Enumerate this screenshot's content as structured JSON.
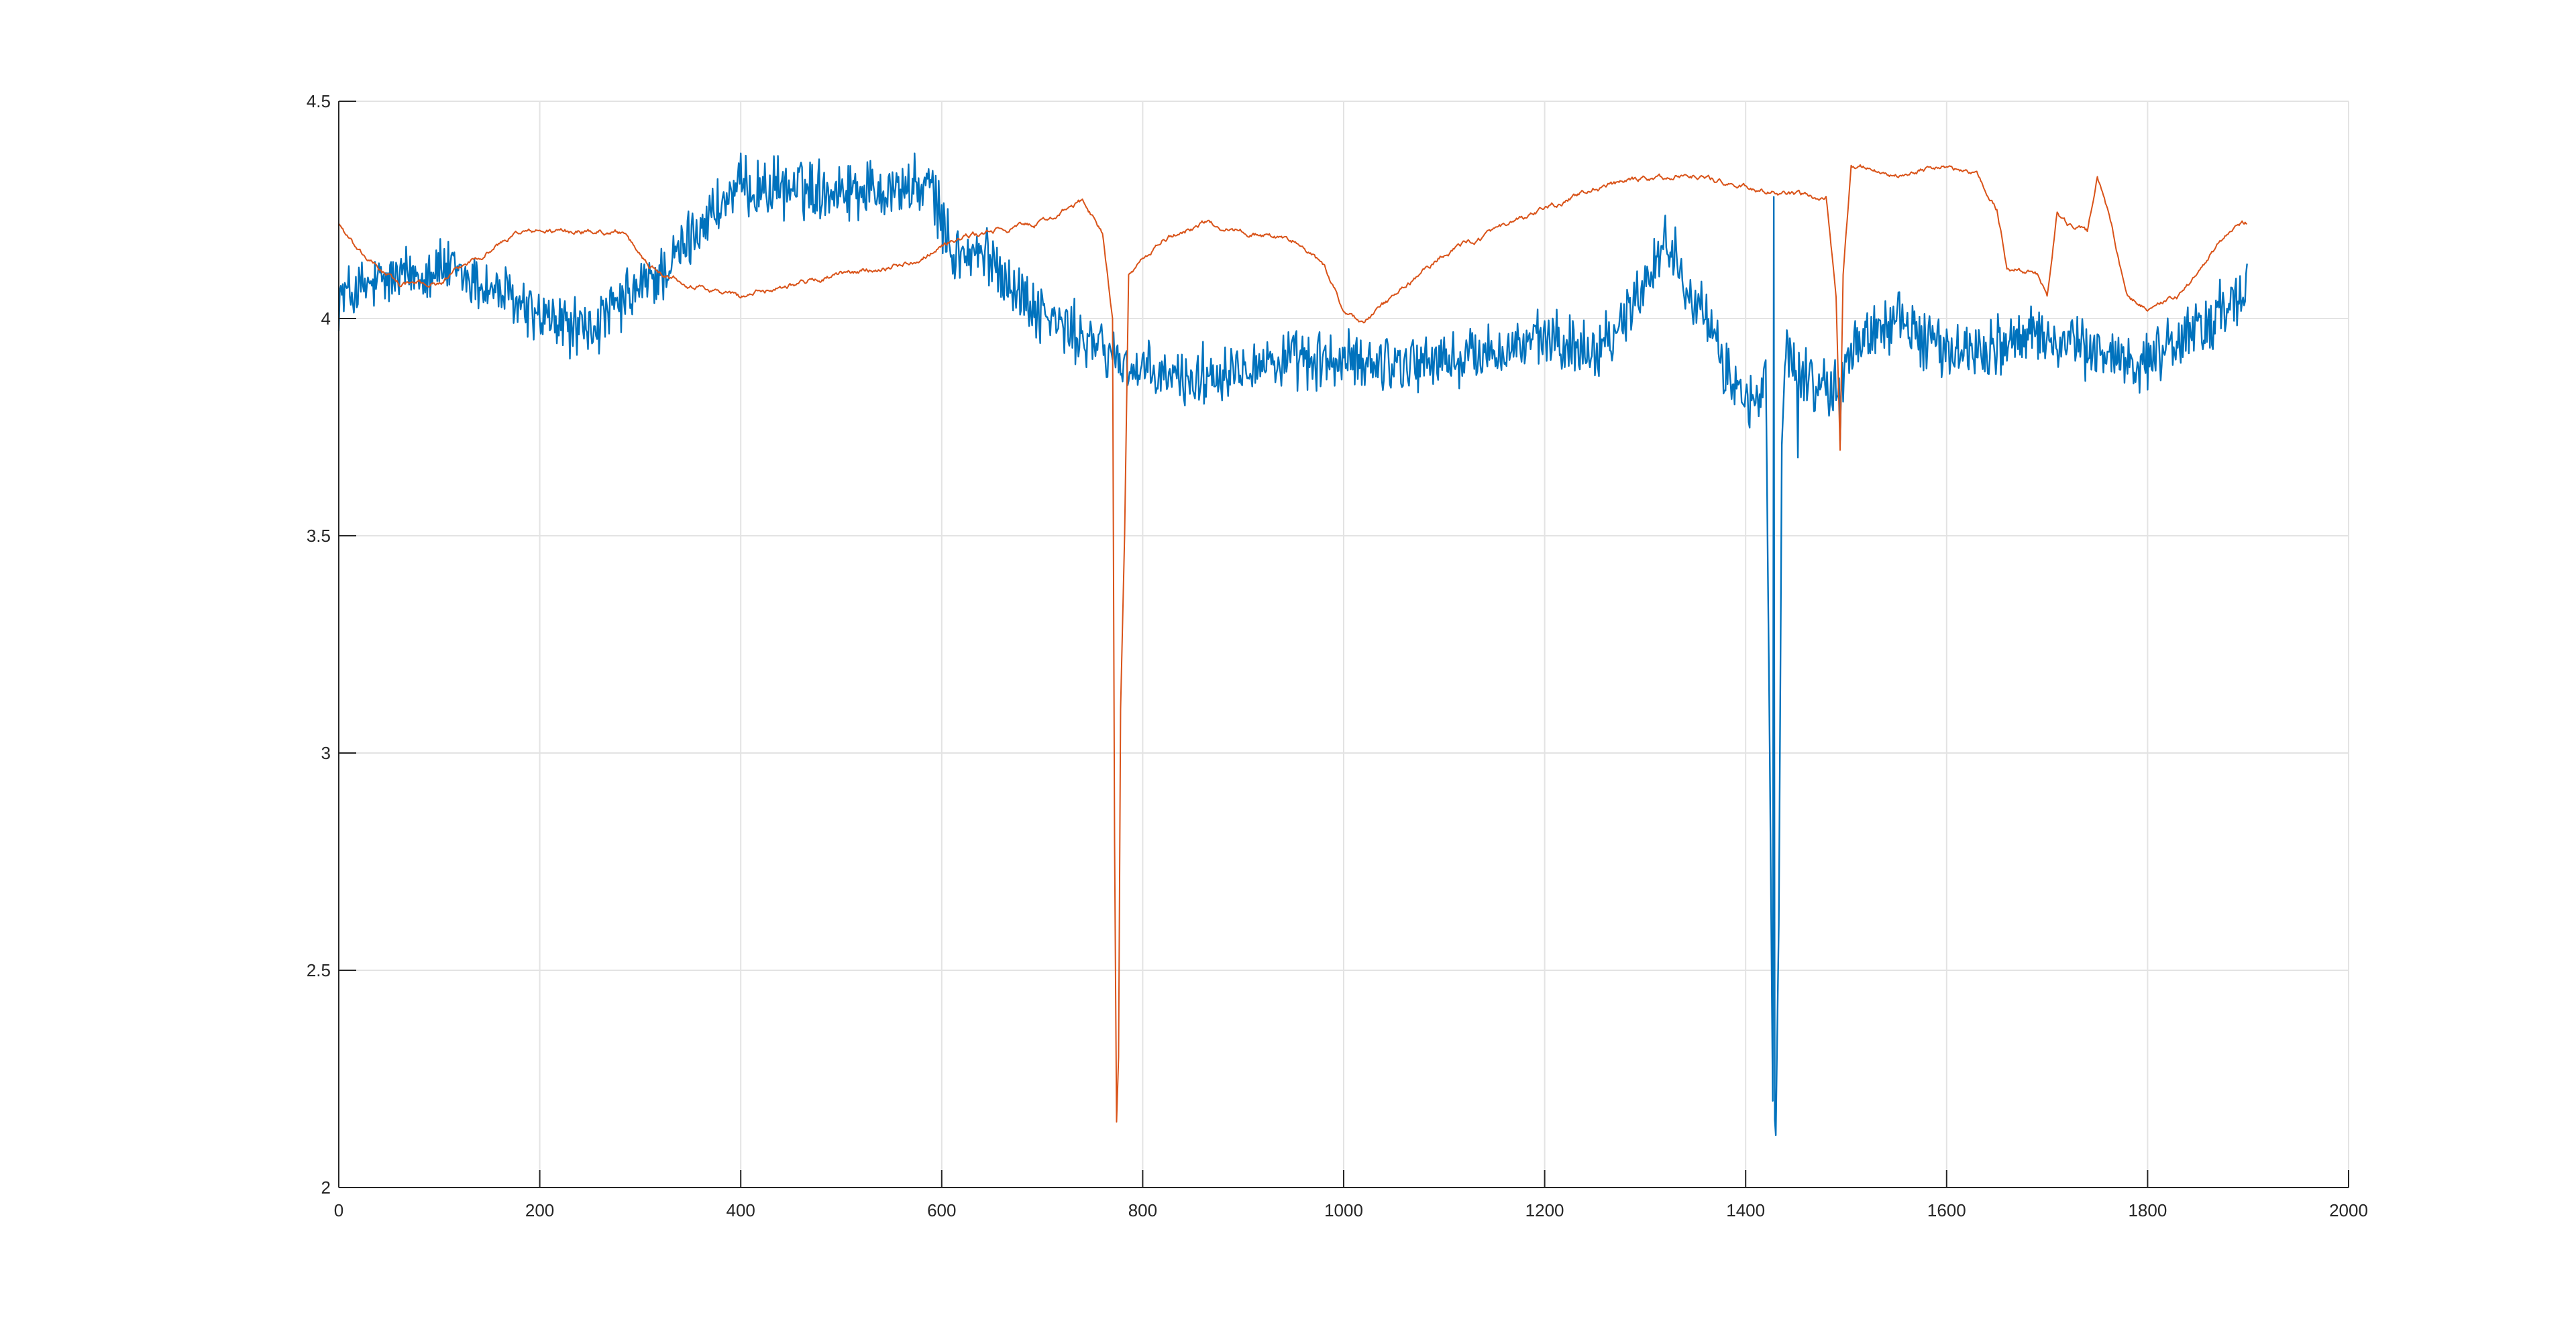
{
  "chart_data": {
    "type": "line",
    "title": "",
    "xlabel": "",
    "ylabel": "",
    "xlim": [
      0,
      2000
    ],
    "ylim": [
      2,
      4.5
    ],
    "x_ticks": [
      0,
      200,
      400,
      600,
      800,
      1000,
      1200,
      1400,
      1600,
      1800,
      2000
    ],
    "y_ticks": [
      2,
      2.5,
      3,
      3.5,
      4,
      4.5
    ],
    "x_tick_labels": [
      "0",
      "200",
      "400",
      "600",
      "800",
      "1000",
      "1200",
      "1400",
      "1600",
      "1800",
      "2000"
    ],
    "y_tick_labels": [
      "2",
      "2.5",
      "3",
      "3.5",
      "4",
      "4.5"
    ],
    "grid": true,
    "legend": "none",
    "samples": 1900,
    "series": [
      {
        "color": "#0072BD",
        "noise": 0.055,
        "knots": [
          [
            0,
            4.05
          ],
          [
            40,
            4.08
          ],
          [
            100,
            4.12
          ],
          [
            160,
            4.06
          ],
          [
            200,
            4.0
          ],
          [
            250,
            3.97
          ],
          [
            300,
            4.07
          ],
          [
            330,
            4.12
          ],
          [
            360,
            4.22
          ],
          [
            400,
            4.3
          ],
          [
            500,
            4.3
          ],
          [
            590,
            4.3
          ],
          [
            610,
            4.15
          ],
          [
            650,
            4.14
          ],
          [
            680,
            4.05
          ],
          [
            720,
            3.98
          ],
          [
            760,
            3.93
          ],
          [
            800,
            3.87
          ],
          [
            850,
            3.86
          ],
          [
            900,
            3.9
          ],
          [
            1000,
            3.9
          ],
          [
            1100,
            3.9
          ],
          [
            1200,
            3.95
          ],
          [
            1250,
            3.93
          ],
          [
            1280,
            4.0
          ],
          [
            1320,
            4.18
          ],
          [
            1350,
            4.05
          ],
          [
            1380,
            3.88
          ],
          [
            1400,
            3.82
          ],
          [
            1415,
            3.8
          ],
          [
            1420,
            3.9
          ],
          [
            1424,
            3.0
          ],
          [
            1427,
            2.2
          ],
          [
            1430,
            2.12
          ],
          [
            1433,
            2.6
          ],
          [
            1436,
            3.7
          ],
          [
            1440,
            3.95
          ],
          [
            1450,
            3.88
          ],
          [
            1470,
            3.85
          ],
          [
            1490,
            3.83
          ],
          [
            1510,
            3.95
          ],
          [
            1550,
            4.0
          ],
          [
            1600,
            3.92
          ],
          [
            1700,
            3.96
          ],
          [
            1750,
            3.92
          ],
          [
            1800,
            3.9
          ],
          [
            1850,
            3.98
          ],
          [
            1899,
            4.05
          ]
        ],
        "spikes": [
          [
            1428,
            4.28
          ],
          [
            1452,
            3.68
          ],
          [
            1494,
            3.72
          ]
        ]
      },
      {
        "color": "#D95319",
        "noise": 0.008,
        "knots": [
          [
            0,
            4.22
          ],
          [
            20,
            4.15
          ],
          [
            60,
            4.08
          ],
          [
            100,
            4.08
          ],
          [
            130,
            4.13
          ],
          [
            180,
            4.2
          ],
          [
            240,
            4.2
          ],
          [
            280,
            4.2
          ],
          [
            310,
            4.12
          ],
          [
            350,
            4.08
          ],
          [
            400,
            4.05
          ],
          [
            450,
            4.08
          ],
          [
            500,
            4.1
          ],
          [
            570,
            4.13
          ],
          [
            610,
            4.18
          ],
          [
            650,
            4.2
          ],
          [
            700,
            4.22
          ],
          [
            740,
            4.27
          ],
          [
            760,
            4.2
          ],
          [
            770,
            4.0
          ],
          [
            772,
            2.8
          ],
          [
            774,
            2.15
          ],
          [
            776,
            2.3
          ],
          [
            778,
            3.1
          ],
          [
            782,
            3.5
          ],
          [
            786,
            4.1
          ],
          [
            795,
            4.12
          ],
          [
            820,
            4.18
          ],
          [
            860,
            4.22
          ],
          [
            900,
            4.2
          ],
          [
            950,
            4.18
          ],
          [
            980,
            4.12
          ],
          [
            1000,
            4.02
          ],
          [
            1020,
            3.99
          ],
          [
            1050,
            4.05
          ],
          [
            1100,
            4.15
          ],
          [
            1150,
            4.2
          ],
          [
            1200,
            4.25
          ],
          [
            1250,
            4.3
          ],
          [
            1300,
            4.32
          ],
          [
            1350,
            4.33
          ],
          [
            1400,
            4.3
          ],
          [
            1450,
            4.28
          ],
          [
            1480,
            4.28
          ],
          [
            1490,
            4.05
          ],
          [
            1494,
            3.7
          ],
          [
            1497,
            4.1
          ],
          [
            1505,
            4.35
          ],
          [
            1520,
            4.35
          ],
          [
            1550,
            4.33
          ],
          [
            1600,
            4.35
          ],
          [
            1630,
            4.33
          ],
          [
            1650,
            4.25
          ],
          [
            1660,
            4.12
          ],
          [
            1690,
            4.1
          ],
          [
            1700,
            4.05
          ],
          [
            1710,
            4.25
          ],
          [
            1720,
            4.22
          ],
          [
            1740,
            4.2
          ],
          [
            1750,
            4.33
          ],
          [
            1765,
            4.2
          ],
          [
            1780,
            4.05
          ],
          [
            1800,
            4.02
          ],
          [
            1830,
            4.05
          ],
          [
            1850,
            4.1
          ],
          [
            1880,
            4.2
          ],
          [
            1899,
            4.22
          ]
        ],
        "spikes": []
      }
    ]
  }
}
